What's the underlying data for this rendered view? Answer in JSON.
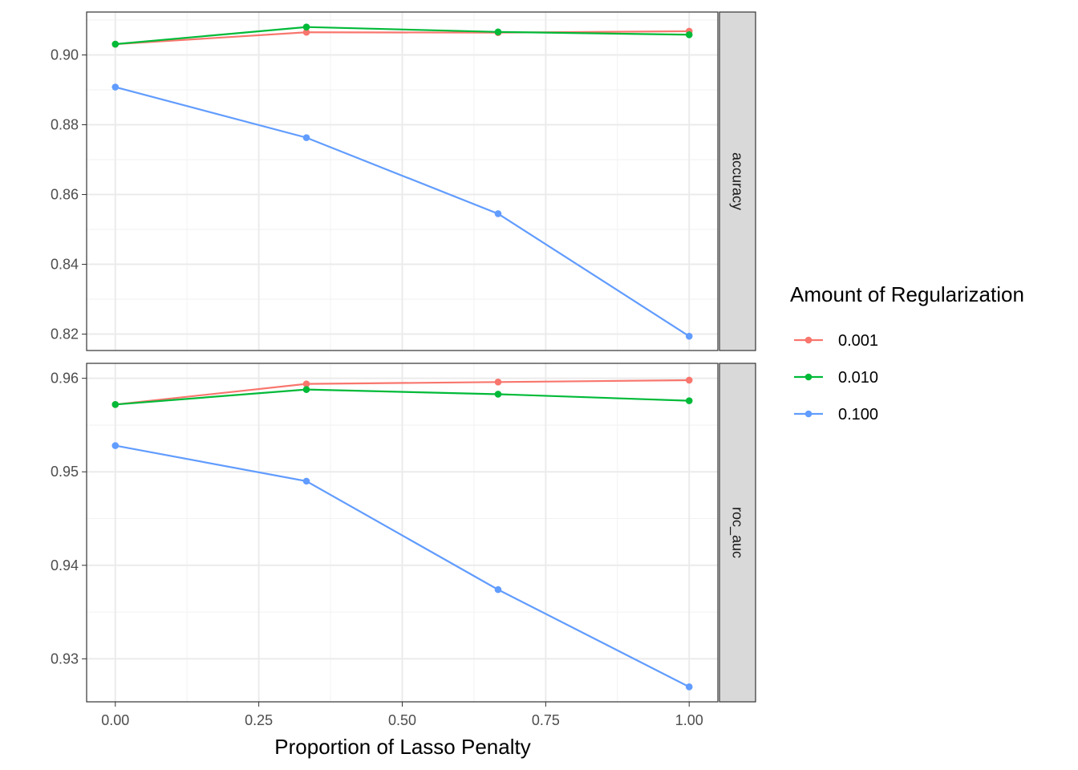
{
  "chart_data": {
    "type": "line",
    "xlabel": "Proportion of Lasso Penalty",
    "x": [
      0.0,
      0.333,
      0.667,
      1.0
    ],
    "x_ticks": [
      0.0,
      0.25,
      0.5,
      0.75,
      1.0
    ],
    "x_tick_labels": [
      "0.00",
      "0.25",
      "0.50",
      "0.75",
      "1.00"
    ],
    "xlim": [
      -0.05,
      1.05
    ],
    "legend": {
      "title": "Amount of Regularization",
      "placement": "right",
      "entries": [
        "0.001",
        "0.010",
        "0.100"
      ]
    },
    "series_colors": {
      "0.001": "#F8766D",
      "0.010": "#00BA38",
      "0.100": "#619CFF"
    },
    "grid": true,
    "panels": [
      {
        "strip": "accuracy",
        "ylim": [
          0.8153,
          0.9123
        ],
        "y_ticks": [
          0.82,
          0.84,
          0.86,
          0.88,
          0.9
        ],
        "y_tick_labels": [
          "0.82",
          "0.84",
          "0.86",
          "0.88",
          "0.90"
        ],
        "series": [
          {
            "name": "0.001",
            "values": [
              0.9031,
              0.9065,
              0.9064,
              0.9068
            ]
          },
          {
            "name": "0.010",
            "values": [
              0.9031,
              0.908,
              0.9066,
              0.9058
            ]
          },
          {
            "name": "0.100",
            "values": [
              0.8908,
              0.8763,
              0.8545,
              0.8194
            ]
          }
        ]
      },
      {
        "strip": "roc_auc",
        "ylim": [
          0.9254,
          0.9616
        ],
        "y_ticks": [
          0.93,
          0.94,
          0.95,
          0.96
        ],
        "y_tick_labels": [
          "0.93",
          "0.94",
          "0.95",
          "0.96"
        ],
        "series": [
          {
            "name": "0.001",
            "values": [
              0.9572,
              0.9594,
              0.9596,
              0.9598
            ]
          },
          {
            "name": "0.010",
            "values": [
              0.9572,
              0.9588,
              0.9583,
              0.9576
            ]
          },
          {
            "name": "0.100",
            "values": [
              0.9528,
              0.949,
              0.9374,
              0.927
            ]
          }
        ]
      }
    ]
  }
}
